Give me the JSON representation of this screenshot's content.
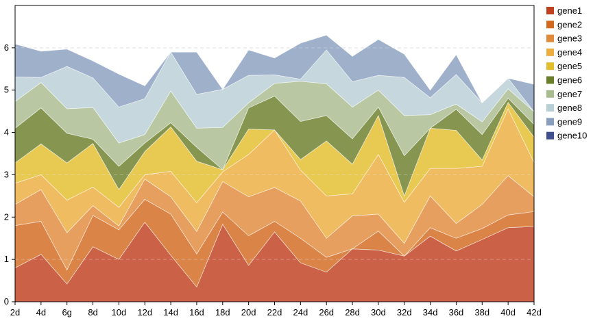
{
  "chart_data": {
    "type": "area",
    "stacked": true,
    "title": "",
    "xlabel": "",
    "ylabel": "",
    "categories": [
      "2d",
      "4d",
      "6g",
      "8d",
      "10d",
      "12d",
      "14d",
      "16d",
      "18d",
      "20d",
      "22d",
      "24d",
      "26d",
      "28d",
      "30d",
      "32d",
      "34d",
      "36d",
      "38d",
      "40d",
      "42d"
    ],
    "ylim": [
      0,
      7
    ],
    "yticks": [
      0,
      1,
      2,
      3,
      4,
      5,
      6
    ],
    "grid": "horizontal dashed at 1, 3, 6",
    "legend_position": "right",
    "series": [
      {
        "name": "gene1",
        "color": "#c0401f",
        "values": [
          0.8,
          1.12,
          0.42,
          1.3,
          1.0,
          1.88,
          1.1,
          0.35,
          1.83,
          0.86,
          1.65,
          0.92,
          0.7,
          1.25,
          1.22,
          1.08,
          1.55,
          1.2,
          1.47,
          1.75,
          1.78
        ]
      },
      {
        "name": "gene2",
        "color": "#d2691e",
        "values": [
          1.0,
          0.78,
          0.33,
          0.74,
          0.7,
          0.54,
          0.97,
          0.78,
          0.29,
          0.7,
          0.25,
          0.58,
          0.35,
          0.0,
          0.45,
          0.0,
          0.2,
          0.3,
          0.26,
          0.3,
          0.35
        ]
      },
      {
        "name": "gene3",
        "color": "#e08a3a",
        "values": [
          0.5,
          0.75,
          0.88,
          0.23,
          0.09,
          0.48,
          0.41,
          0.53,
          0.72,
          0.92,
          0.8,
          0.88,
          0.45,
          0.78,
          0.4,
          0.3,
          0.75,
          0.35,
          0.57,
          0.93,
          0.35
        ]
      },
      {
        "name": "gene4",
        "color": "#edad3f",
        "values": [
          0.5,
          0.35,
          0.77,
          0.44,
          0.44,
          0.1,
          0.6,
          0.68,
          0.23,
          1.0,
          1.36,
          0.73,
          1.0,
          0.52,
          1.41,
          0.97,
          0.65,
          1.3,
          0.9,
          1.58,
          0.81
        ]
      },
      {
        "name": "gene5",
        "color": "#e3bd2c",
        "values": [
          0.48,
          0.73,
          0.88,
          1.03,
          0.42,
          0.55,
          1.05,
          0.98,
          0.05,
          0.6,
          0.0,
          0.25,
          1.3,
          0.7,
          0.92,
          0.15,
          0.95,
          0.9,
          0.15,
          0.15,
          0.6
        ]
      },
      {
        "name": "gene6",
        "color": "#6b7f2a",
        "values": [
          0.82,
          0.85,
          0.7,
          0.1,
          0.55,
          0.2,
          0.1,
          0.33,
          0.0,
          0.5,
          0.8,
          0.9,
          0.6,
          0.6,
          0.2,
          0.95,
          0.0,
          0.5,
          0.6,
          0.1,
          0.3
        ]
      },
      {
        "name": "gene7",
        "color": "#a9bc8f",
        "values": [
          0.63,
          0.6,
          0.58,
          0.75,
          0.55,
          0.2,
          0.75,
          0.45,
          1.0,
          0.12,
          0.3,
          0.95,
          0.75,
          0.75,
          0.4,
          0.95,
          0.32,
          0.12,
          0.3,
          0.22,
          0.3
        ]
      },
      {
        "name": "gene8",
        "color": "#b9cfd6",
        "values": [
          0.58,
          0.12,
          1.0,
          0.7,
          0.85,
          0.85,
          0.92,
          0.8,
          0.9,
          0.65,
          0.2,
          0.05,
          0.8,
          0.6,
          0.35,
          0.9,
          0.4,
          0.7,
          0.45,
          0.25,
          0.0
        ]
      },
      {
        "name": "gene9",
        "color": "#8a9fbe",
        "values": [
          0.78,
          0.62,
          0.41,
          0.4,
          0.78,
          0.3,
          0.0,
          1.0,
          0.0,
          0.6,
          0.4,
          0.85,
          0.35,
          0.6,
          0.85,
          0.55,
          0.18,
          0.47,
          0.0,
          0.0,
          0.65
        ]
      },
      {
        "name": "gene10",
        "color": "#40508f",
        "values": [
          0,
          0,
          0,
          0,
          0,
          0,
          0,
          0,
          0,
          0,
          0,
          0,
          0,
          0,
          0,
          0,
          0,
          0,
          0,
          0,
          0
        ]
      }
    ]
  }
}
